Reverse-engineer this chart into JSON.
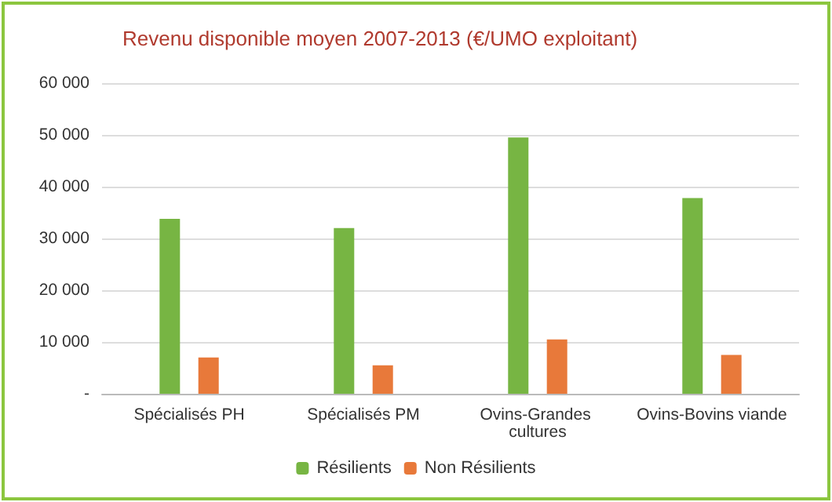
{
  "chart_data": {
    "type": "bar",
    "title": "Revenu disponible moyen 2007-2013 (€/UMO exploitant)",
    "categories": [
      "Spécialisés PH",
      "Spécialisés PM",
      "Ovins-Grandes cultures",
      "Ovins-Bovins viande"
    ],
    "series": [
      {
        "name": "Résilients",
        "color": "#77b543",
        "values": [
          33800,
          32000,
          49500,
          37800
        ]
      },
      {
        "name": "Non Résilients",
        "color": "#e8793a",
        "values": [
          7000,
          5500,
          10500,
          7500
        ]
      }
    ],
    "ylim": [
      0,
      60000
    ],
    "yticks": [
      {
        "value": 0,
        "label": "-"
      },
      {
        "value": 10000,
        "label": "10 000"
      },
      {
        "value": 20000,
        "label": "20 000"
      },
      {
        "value": 30000,
        "label": "30 000"
      },
      {
        "value": 40000,
        "label": "40 000"
      },
      {
        "value": 50000,
        "label": "50 000"
      },
      {
        "value": 60000,
        "label": "60 000"
      }
    ],
    "grid": "y",
    "legend": "bottom"
  }
}
